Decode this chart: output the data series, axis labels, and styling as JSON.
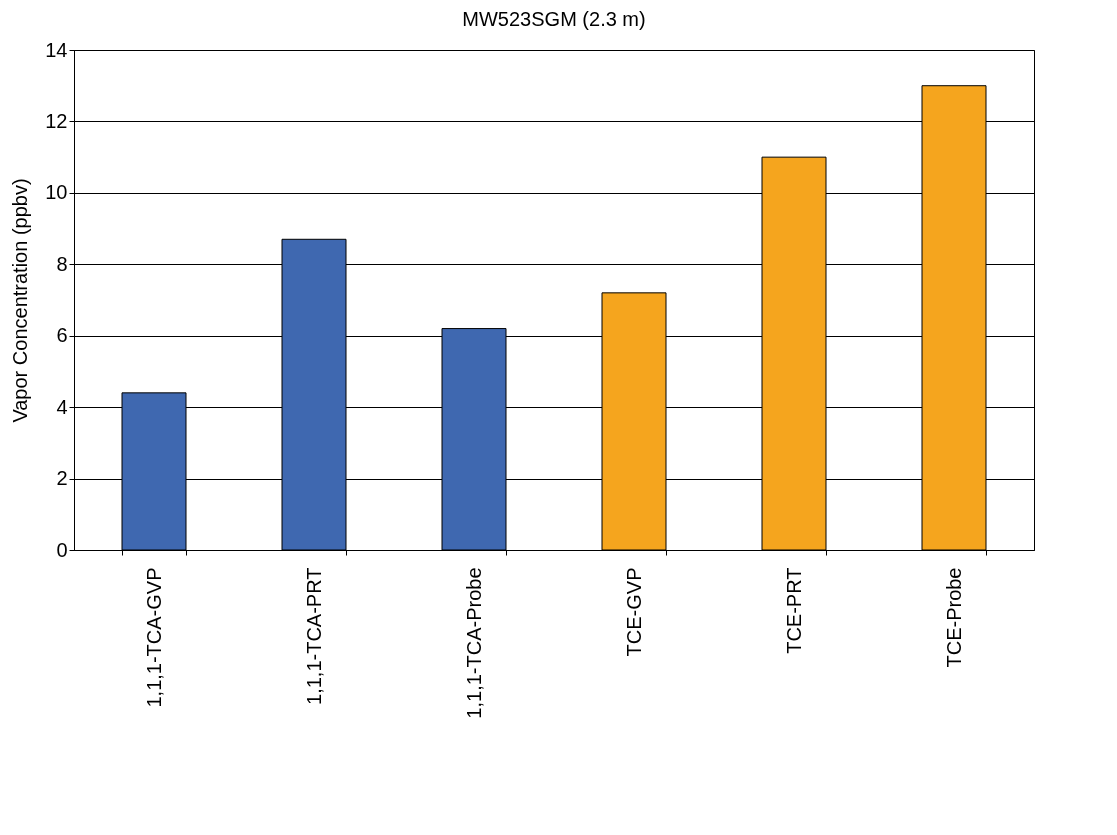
{
  "chart_data": {
    "type": "bar",
    "title": "MW523SGM (2.3 m)",
    "ylabel": "Vapor Concentration (ppbv)",
    "categories": [
      "1,1,1-TCA-GVP",
      "1,1,1-TCA-PRT",
      "1,1,1-TCA-Probe",
      "TCE-GVP",
      "TCE-PRT",
      "TCE-Probe"
    ],
    "values": [
      4.4,
      8.7,
      6.2,
      7.2,
      11.0,
      13.0
    ],
    "colors": [
      "#3f68b0",
      "#3f68b0",
      "#3f68b0",
      "#f5a51e",
      "#f5a51e",
      "#f5a51e"
    ],
    "ylim": [
      0,
      14
    ],
    "yticks": [
      0,
      2,
      4,
      6,
      8,
      10,
      12,
      14
    ],
    "grid": "y"
  }
}
